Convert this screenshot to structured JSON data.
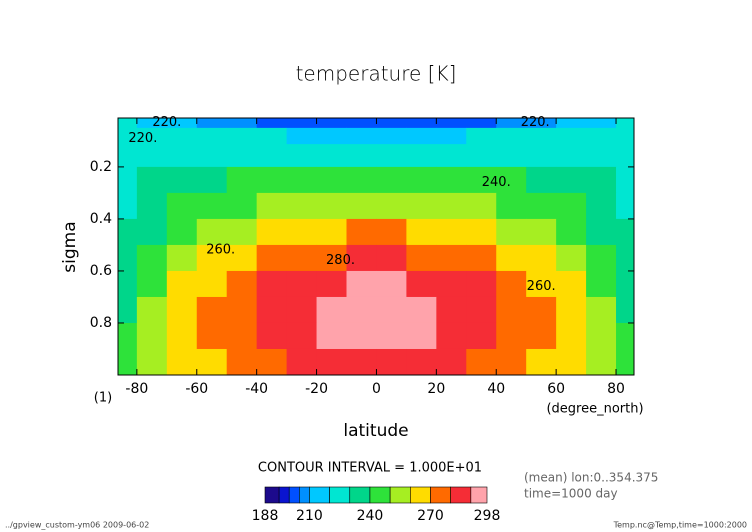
{
  "chart_data": {
    "type": "heatmap",
    "title": "temperature [K]",
    "x_label": "latitude",
    "x_unit": "(degree_north)",
    "y_label": "sigma",
    "y_unit": "(1)",
    "x": [
      -85,
      -75,
      -65,
      -55,
      -45,
      -35,
      -25,
      -15,
      -5,
      5,
      15,
      25,
      35,
      45,
      55,
      65,
      75,
      85
    ],
    "y": [
      0.025,
      0.075,
      0.15,
      0.25,
      0.35,
      0.45,
      0.55,
      0.65,
      0.75,
      0.85,
      0.95
    ],
    "z": [
      [
        222,
        217,
        213,
        209,
        206,
        204,
        202,
        201,
        200,
        200,
        201,
        202,
        204,
        206,
        209,
        213,
        217,
        222
      ],
      [
        227,
        225,
        223,
        222,
        221,
        220,
        219,
        218,
        218,
        218,
        218,
        219,
        220,
        221,
        222,
        223,
        225,
        227
      ],
      [
        228,
        228,
        228,
        228,
        228,
        228,
        228,
        228,
        228,
        228,
        228,
        228,
        228,
        228,
        228,
        228,
        228,
        228
      ],
      [
        227,
        231,
        235,
        238,
        240,
        242,
        243,
        244,
        245,
        245,
        244,
        243,
        242,
        240,
        238,
        235,
        231,
        227
      ],
      [
        227,
        234,
        240,
        245,
        249,
        253,
        255,
        257,
        258,
        258,
        257,
        255,
        253,
        249,
        245,
        240,
        234,
        227
      ],
      [
        230,
        239,
        247,
        253,
        259,
        263,
        267,
        269,
        270,
        270,
        269,
        267,
        263,
        259,
        253,
        247,
        239,
        230
      ],
      [
        232,
        243,
        252,
        260,
        267,
        273,
        277,
        279,
        281,
        281,
        279,
        277,
        273,
        267,
        260,
        252,
        243,
        232
      ],
      [
        237,
        249,
        260,
        269,
        276,
        282,
        286,
        289,
        291,
        291,
        289,
        286,
        282,
        276,
        269,
        260,
        249,
        237
      ],
      [
        239,
        251,
        262,
        271,
        278,
        284,
        288,
        291,
        293,
        293,
        291,
        288,
        284,
        278,
        271,
        262,
        251,
        239
      ],
      [
        243,
        254,
        263,
        271,
        278,
        284,
        288,
        290,
        292,
        292,
        290,
        288,
        284,
        278,
        271,
        263,
        254,
        243
      ],
      [
        246,
        255,
        262,
        269,
        275,
        279,
        283,
        285,
        286,
        286,
        285,
        283,
        279,
        275,
        269,
        262,
        255,
        246
      ]
    ],
    "xlim": [
      -86.3,
      86
    ],
    "ylim": [
      0.012,
      1.0
    ],
    "y_inverted": true,
    "xticks": [
      -80,
      -60,
      -40,
      -20,
      0,
      20,
      40,
      60,
      80
    ],
    "yticks": [
      0.2,
      0.4,
      0.6,
      0.8
    ],
    "levels": [
      188,
      195,
      200,
      205,
      210,
      220,
      230,
      240,
      250,
      260,
      270,
      280,
      290,
      298
    ],
    "colors": [
      "#1c0a8c",
      "#0a14d0",
      "#0050ff",
      "#0090ff",
      "#00c8ff",
      "#00e6d2",
      "#00d68a",
      "#2ee23a",
      "#a6ee22",
      "#ffdc00",
      "#ff6a00",
      "#f52d36",
      "#ffa3ab"
    ],
    "colorbar_ticks": [
      188,
      210,
      240,
      270,
      298
    ],
    "contour_interval": "CONTOUR INTERVAL = 1.000E+01",
    "annotations": [
      {
        "text": "220.",
        "x": -70,
        "y": 0.03
      },
      {
        "text": "220.",
        "x": -78,
        "y": 0.09
      },
      {
        "text": "220.",
        "x": 53,
        "y": 0.03
      },
      {
        "text": "240.",
        "x": 40,
        "y": 0.26
      },
      {
        "text": "260.",
        "x": -52,
        "y": 0.52
      },
      {
        "text": "280.",
        "x": -12,
        "y": 0.56
      },
      {
        "text": "260.",
        "x": 55,
        "y": 0.66
      }
    ],
    "info": [
      "(mean) lon:0..354.375",
      "time=1000 day"
    ],
    "footer_left": "../gpview_custom-ym06  2009-06-02",
    "footer_right": "Temp.nc@Temp,time=1000:2000"
  }
}
